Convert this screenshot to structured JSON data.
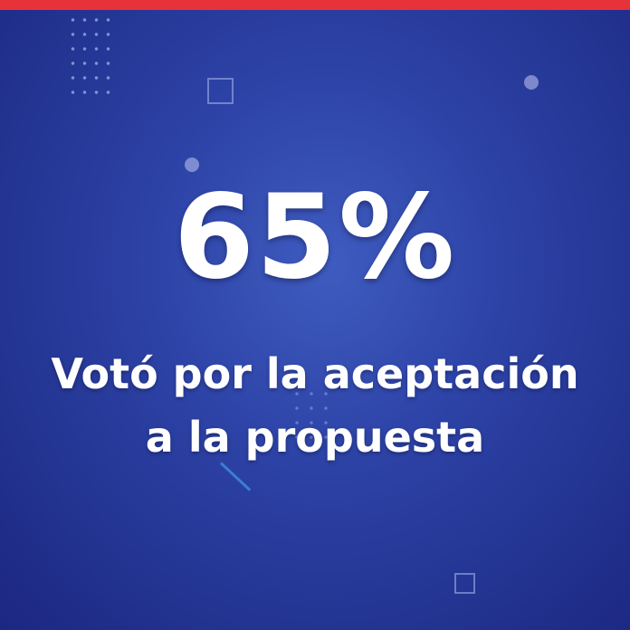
{
  "stat": {
    "value": "65%",
    "caption_line1": "Votó por la aceptación",
    "caption_line2": "a la propuesta"
  },
  "colors": {
    "background": "#2e44a8",
    "top_bar": "#e8323a",
    "text": "#ffffff"
  }
}
